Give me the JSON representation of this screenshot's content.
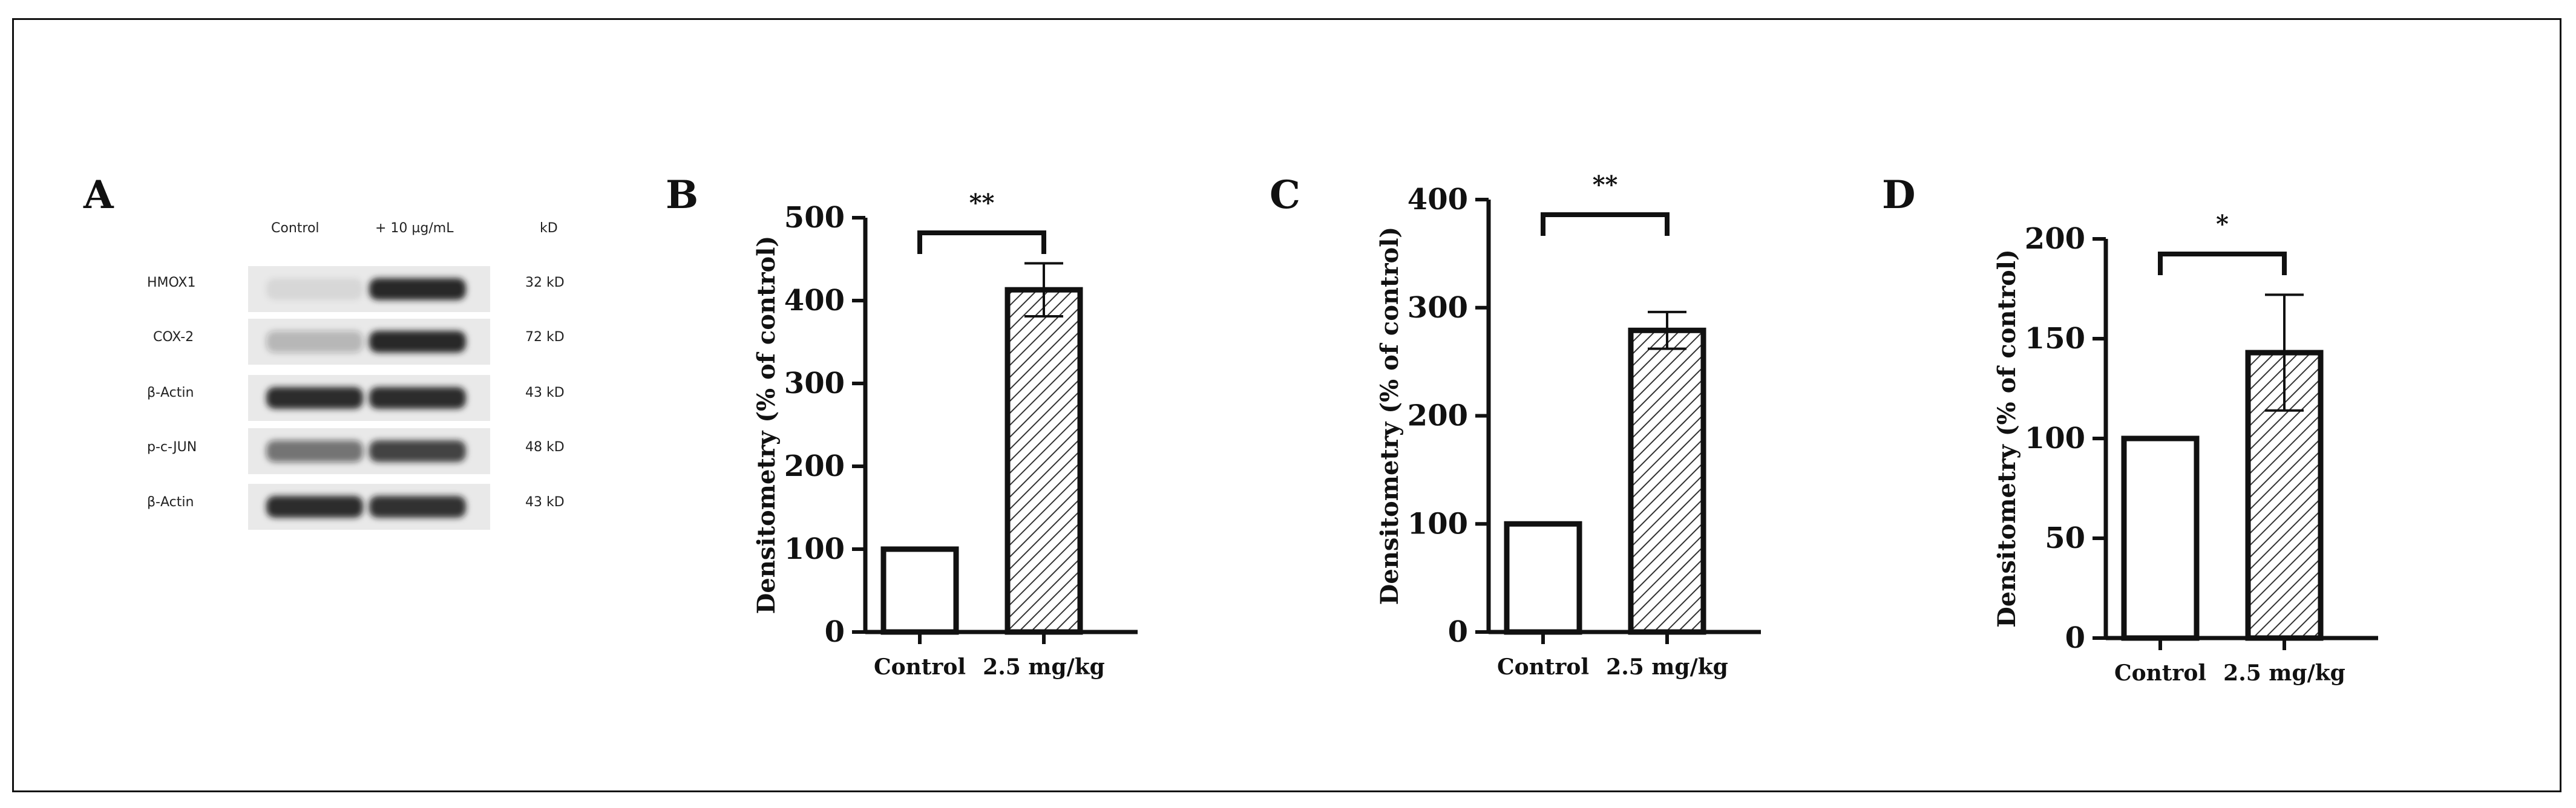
{
  "panels": {
    "A": "A",
    "B": "B",
    "C": "C",
    "D": "D"
  },
  "blot": {
    "lane_headers": [
      "Control",
      "+ 10 µg/mL",
      "kD"
    ],
    "rows": [
      {
        "protein": "HMOX1",
        "size": "32 kD",
        "control": 0.08,
        "treated": 0.95
      },
      {
        "protein": "COX-2",
        "size": "72 kD",
        "control": 0.25,
        "treated": 0.95
      },
      {
        "protein": "β-Actin",
        "size": "43 kD",
        "control": 0.9,
        "treated": 0.9
      },
      {
        "protein": "p-c-JUN",
        "size": "48 kD",
        "control": 0.55,
        "treated": 0.8
      },
      {
        "protein": "β-Actin",
        "size": "43 kD",
        "control": 0.9,
        "treated": 0.88
      }
    ]
  },
  "chart_data": [
    {
      "panel": "B",
      "type": "bar",
      "categories": [
        "Control",
        "2.5 mg/kg"
      ],
      "values": [
        100,
        413
      ],
      "errors": [
        0,
        32
      ],
      "ylim": [
        0,
        500
      ],
      "yticks": [
        0,
        100,
        200,
        300,
        400,
        500
      ],
      "ylabel": "Densitometry (% of control)",
      "significance": "**",
      "patterns": [
        "none",
        "hatch"
      ]
    },
    {
      "panel": "C",
      "type": "bar",
      "categories": [
        "Control",
        "2.5 mg/kg"
      ],
      "values": [
        100,
        279
      ],
      "errors": [
        0,
        17
      ],
      "ylim": [
        0,
        400
      ],
      "yticks": [
        0,
        100,
        200,
        300,
        400
      ],
      "ylabel": "Densitometry (% of control)",
      "significance": "**",
      "patterns": [
        "none",
        "hatch"
      ]
    },
    {
      "panel": "D",
      "type": "bar",
      "categories": [
        "Control",
        "2.5 mg/kg"
      ],
      "values": [
        100,
        143
      ],
      "errors": [
        0,
        29
      ],
      "ylim": [
        0,
        200
      ],
      "yticks": [
        0,
        50,
        100,
        150,
        200
      ],
      "ylabel": "Densitometry (% of control)",
      "significance": "*",
      "patterns": [
        "none",
        "hatch"
      ]
    }
  ],
  "colors": {
    "ink": "#111111",
    "bar_fill": "#ffffff",
    "band": "#1a1a1a"
  }
}
